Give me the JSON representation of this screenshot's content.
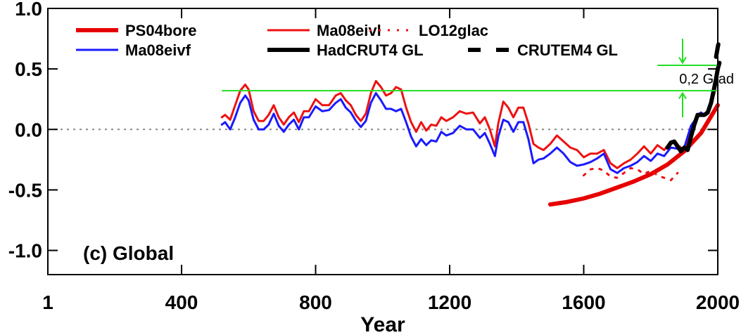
{
  "chart_data": {
    "type": "line",
    "panel_label": "(c) Global",
    "xlabel": "Year",
    "ylabel": "",
    "xlim": [
      1,
      2000
    ],
    "ylim": [
      -1.2,
      1.0
    ],
    "x_ticks": [
      1,
      400,
      800,
      1200,
      1600,
      2000
    ],
    "x_tick_labels": [
      "1",
      "400",
      "800",
      "1200",
      "1600",
      "2000"
    ],
    "y_ticks": [
      1.0,
      0.5,
      0.0,
      -0.5,
      -1.0
    ],
    "y_tick_labels": [
      "1.0",
      "0.5",
      "0.0",
      "-0.5",
      "-1.0"
    ],
    "zero_line": "dotted",
    "legend_position": "top",
    "series": [
      {
        "name": "PS04bore",
        "color": "#e60000",
        "style": "thick",
        "x": [
          1500,
          1550,
          1600,
          1650,
          1700,
          1750,
          1800,
          1850,
          1900,
          1950,
          2000
        ],
        "y": [
          -0.62,
          -0.6,
          -0.57,
          -0.53,
          -0.48,
          -0.43,
          -0.37,
          -0.29,
          -0.18,
          -0.03,
          0.2
        ]
      },
      {
        "name": "Ma08eivl",
        "color": "#ee1111",
        "style": "solid",
        "x": [
          520,
          530,
          545,
          560,
          575,
          590,
          600,
          615,
          630,
          645,
          660,
          675,
          690,
          705,
          720,
          735,
          750,
          765,
          780,
          800,
          820,
          840,
          860,
          875,
          890,
          905,
          920,
          935,
          950,
          965,
          980,
          995,
          1010,
          1025,
          1040,
          1055,
          1070,
          1085,
          1100,
          1115,
          1130,
          1145,
          1160,
          1175,
          1190,
          1210,
          1230,
          1250,
          1270,
          1290,
          1305,
          1320,
          1335,
          1345,
          1360,
          1375,
          1390,
          1405,
          1420,
          1435,
          1450,
          1465,
          1480,
          1500,
          1520,
          1540,
          1560,
          1580,
          1600,
          1620,
          1640,
          1660,
          1680,
          1700,
          1720,
          1740,
          1760,
          1780,
          1800,
          1820,
          1840,
          1860,
          1880,
          1890,
          1900,
          1910,
          1920,
          1930,
          1940,
          1950,
          1960,
          1970,
          1980,
          1990,
          2000
        ],
        "y": [
          0.1,
          0.12,
          0.08,
          0.2,
          0.32,
          0.37,
          0.33,
          0.15,
          0.07,
          0.07,
          0.12,
          0.2,
          0.1,
          0.04,
          0.1,
          0.14,
          0.06,
          0.15,
          0.15,
          0.25,
          0.2,
          0.2,
          0.28,
          0.3,
          0.24,
          0.2,
          0.12,
          0.07,
          0.13,
          0.3,
          0.4,
          0.35,
          0.28,
          0.3,
          0.35,
          0.33,
          0.18,
          0.06,
          -0.02,
          0.06,
          -0.01,
          0.04,
          0.03,
          0.1,
          0.07,
          0.1,
          0.15,
          0.13,
          0.14,
          0.05,
          0.1,
          0.0,
          -0.14,
          0.05,
          0.23,
          0.18,
          0.1,
          0.18,
          0.18,
          0.05,
          -0.12,
          -0.15,
          -0.17,
          -0.12,
          -0.05,
          -0.1,
          -0.15,
          -0.17,
          -0.23,
          -0.2,
          -0.2,
          -0.17,
          -0.28,
          -0.32,
          -0.28,
          -0.25,
          -0.2,
          -0.14,
          -0.2,
          -0.13,
          -0.17,
          -0.1,
          -0.13,
          -0.15,
          -0.17,
          -0.07,
          0.02,
          0.06,
          0.11,
          0.13,
          0.12,
          0.14,
          0.2,
          0.3,
          0.45
        ]
      },
      {
        "name": "LO12glac",
        "color": "#ee1111",
        "style": "dotted",
        "x": [
          1600,
          1620,
          1640,
          1660,
          1680,
          1700,
          1720,
          1740,
          1760,
          1780,
          1800,
          1820,
          1840,
          1860,
          1880
        ],
        "y": [
          -0.38,
          -0.33,
          -0.32,
          -0.34,
          -0.39,
          -0.4,
          -0.36,
          -0.32,
          -0.33,
          -0.37,
          -0.34,
          -0.38,
          -0.4,
          -0.42,
          -0.36
        ]
      },
      {
        "name": "Ma08eivf",
        "color": "#1a1aff",
        "style": "solid",
        "x": [
          520,
          530,
          545,
          560,
          575,
          590,
          600,
          615,
          630,
          645,
          660,
          675,
          690,
          705,
          720,
          735,
          750,
          765,
          780,
          800,
          820,
          840,
          860,
          875,
          890,
          905,
          920,
          935,
          950,
          965,
          980,
          995,
          1010,
          1025,
          1040,
          1055,
          1070,
          1085,
          1100,
          1115,
          1130,
          1145,
          1160,
          1175,
          1190,
          1210,
          1230,
          1250,
          1270,
          1290,
          1305,
          1320,
          1335,
          1345,
          1360,
          1375,
          1390,
          1405,
          1420,
          1435,
          1450,
          1465,
          1480,
          1500,
          1520,
          1540,
          1560,
          1580,
          1600,
          1620,
          1640,
          1660,
          1680,
          1700,
          1720,
          1740,
          1760,
          1780,
          1800,
          1820,
          1840,
          1860,
          1880,
          1890,
          1900,
          1910,
          1920,
          1930,
          1940,
          1950,
          1960,
          1970,
          1980,
          1990,
          2000
        ],
        "y": [
          0.04,
          0.06,
          0.0,
          0.1,
          0.22,
          0.28,
          0.24,
          0.08,
          0.0,
          0.0,
          0.04,
          0.13,
          0.03,
          -0.02,
          0.04,
          0.08,
          0.0,
          0.1,
          0.1,
          0.19,
          0.15,
          0.16,
          0.22,
          0.25,
          0.18,
          0.14,
          0.07,
          0.02,
          0.07,
          0.22,
          0.3,
          0.24,
          0.17,
          0.17,
          0.15,
          0.17,
          0.06,
          -0.06,
          -0.14,
          -0.08,
          -0.13,
          -0.09,
          -0.1,
          -0.02,
          -0.05,
          -0.03,
          0.03,
          0.0,
          0.0,
          -0.07,
          -0.03,
          -0.12,
          -0.22,
          -0.06,
          0.08,
          0.06,
          -0.02,
          0.06,
          0.06,
          -0.08,
          -0.28,
          -0.25,
          -0.24,
          -0.2,
          -0.15,
          -0.2,
          -0.27,
          -0.3,
          -0.29,
          -0.27,
          -0.24,
          -0.2,
          -0.33,
          -0.36,
          -0.32,
          -0.3,
          -0.27,
          -0.22,
          -0.26,
          -0.2,
          -0.22,
          -0.15,
          -0.16,
          -0.16,
          -0.15,
          -0.06,
          0.03,
          0.07,
          0.12,
          0.14,
          0.12,
          0.15,
          0.2,
          0.32,
          0.48
        ]
      },
      {
        "name": "HadCRUT4 GL",
        "color": "#000000",
        "style": "thick",
        "x": [
          1850,
          1860,
          1870,
          1880,
          1890,
          1900,
          1910,
          1920,
          1930,
          1940,
          1950,
          1960,
          1970,
          1980,
          1990,
          1995,
          2000,
          2005
        ],
        "y": [
          -0.15,
          -0.11,
          -0.1,
          -0.14,
          -0.18,
          -0.15,
          -0.17,
          -0.06,
          0.04,
          0.12,
          0.12,
          0.12,
          0.14,
          0.22,
          0.35,
          0.42,
          0.5,
          0.55
        ]
      },
      {
        "name": "CRUTEM4 GL",
        "color": "#000000",
        "style": "dashed",
        "x": [
          1995,
          2000,
          2005
        ],
        "y": [
          0.6,
          0.68,
          0.75
        ]
      }
    ],
    "annotations": [
      {
        "type": "hline",
        "y": 0.32,
        "xfrom": 520,
        "xto": 2000,
        "color": "#22dd22"
      },
      {
        "type": "hline",
        "y": 0.53,
        "xfrom": 1820,
        "xto": 2000,
        "color": "#22dd22"
      },
      {
        "type": "text",
        "text": "0,2 Grad",
        "x": 1885,
        "y": 0.42
      },
      {
        "type": "arrow",
        "x": 1895,
        "y_from": 0.75,
        "y_to": 0.55,
        "color": "#22dd22"
      },
      {
        "type": "arrow",
        "x": 1895,
        "y_from": 0.1,
        "y_to": 0.3,
        "color": "#22dd22"
      }
    ]
  }
}
